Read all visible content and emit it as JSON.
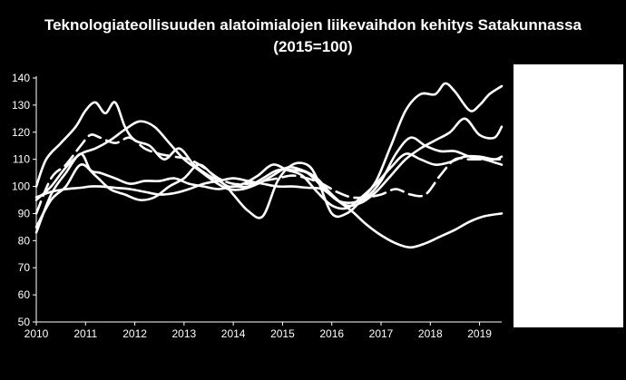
{
  "chart_data": {
    "type": "line",
    "title_line1": "Teknologiateollisuuden alatoimialojen liikevaihdon kehitys Satakunnassa",
    "title_line2": "(2015=100)",
    "ylim": [
      50,
      140
    ],
    "xlim": [
      2010,
      2019.45
    ],
    "yticks": [
      50,
      60,
      70,
      80,
      90,
      100,
      110,
      120,
      130,
      140
    ],
    "xticks": [
      2010,
      2011,
      2012,
      2013,
      2014,
      2015,
      2016,
      2017,
      2018,
      2019
    ],
    "grid": false,
    "legend": "right",
    "line_color": "#ffffff",
    "background": "#000000",
    "series": [
      {
        "style": "solid",
        "x": [
          2010,
          2010.3,
          2010.6,
          2010.9,
          2011.1,
          2011.3,
          2011.6,
          2011.9,
          2012.2,
          2012.5,
          2012.8,
          2013.1,
          2013.4,
          2013.7,
          2014.0,
          2014.3,
          2014.6,
          2014.9,
          2015.2,
          2015.5,
          2015.8,
          2016.1,
          2016.4,
          2016.7,
          2017.0,
          2017.3,
          2017.6,
          2017.9,
          2018.2,
          2018.5,
          2018.8,
          2019.1,
          2019.45
        ],
        "y": [
          96,
          98,
          99,
          99.5,
          100,
          100,
          99.5,
          99,
          98,
          97,
          97.5,
          99,
          101,
          102,
          103,
          102,
          101,
          100,
          100,
          99.5,
          99,
          95,
          91,
          86,
          82,
          79,
          77.5,
          79,
          81.5,
          84,
          87,
          89,
          90
        ]
      },
      {
        "style": "solid",
        "x": [
          2010,
          2010.3,
          2010.6,
          2010.9,
          2011.1,
          2011.3,
          2011.6,
          2011.9,
          2012.2,
          2012.5,
          2012.8,
          2013.1,
          2013.4,
          2013.7,
          2014.0,
          2014.3,
          2014.6,
          2014.9,
          2015.2,
          2015.5,
          2015.8,
          2016.1,
          2016.4,
          2016.7,
          2017.0,
          2017.3,
          2017.6,
          2017.9,
          2018.2,
          2018.5,
          2018.8,
          2019.1,
          2019.45
        ],
        "y": [
          83,
          97,
          105,
          112,
          106,
          105,
          103,
          101,
          102,
          102,
          103,
          101,
          100,
          99,
          100,
          100,
          103,
          106,
          106,
          105,
          100,
          95,
          94,
          96,
          102,
          112,
          118,
          115,
          113,
          113,
          111,
          110,
          108
        ]
      },
      {
        "style": "solid",
        "x": [
          2010,
          2010.3,
          2010.6,
          2010.9,
          2011.2,
          2011.5,
          2011.8,
          2012.1,
          2012.4,
          2012.7,
          2013.0,
          2013.3,
          2013.6,
          2013.9,
          2014.2,
          2014.5,
          2014.8,
          2015.1,
          2015.4,
          2015.7,
          2016.0,
          2016.3,
          2016.6,
          2016.9,
          2017.2,
          2017.5,
          2017.8,
          2018.1,
          2018.4,
          2018.7,
          2019.0,
          2019.3,
          2019.45
        ],
        "y": [
          85,
          95,
          100,
          108,
          104,
          99,
          97,
          95,
          96,
          100,
          103,
          108,
          104,
          100,
          101,
          104,
          108,
          106,
          104,
          98,
          93,
          92,
          96,
          101,
          107,
          112,
          110,
          108,
          109,
          111,
          111,
          110,
          111
        ]
      },
      {
        "style": "solid",
        "x": [
          2010,
          2010.2,
          2010.5,
          2010.8,
          2011.0,
          2011.2,
          2011.4,
          2011.6,
          2011.8,
          2012.0,
          2012.3,
          2012.6,
          2012.9,
          2013.2,
          2013.5,
          2013.8,
          2014.0,
          2014.3,
          2014.6,
          2014.9,
          2015.2,
          2015.5,
          2015.7,
          2016.0,
          2016.3,
          2016.6,
          2016.9,
          2017.2,
          2017.5,
          2017.8,
          2018.1,
          2018.3,
          2018.5,
          2018.8,
          2019.0,
          2019.2,
          2019.45
        ],
        "y": [
          100,
          110,
          116,
          122,
          128,
          131,
          127,
          131,
          122,
          117,
          115,
          110,
          114,
          108,
          104,
          101,
          97,
          91,
          89,
          102,
          108,
          108,
          103,
          90,
          90,
          95,
          102,
          115,
          128,
          134,
          134,
          138,
          135,
          128,
          130,
          134,
          137
        ]
      },
      {
        "style": "solid",
        "x": [
          2010,
          2010.3,
          2010.6,
          2010.9,
          2011.2,
          2011.5,
          2011.8,
          2012.1,
          2012.4,
          2012.7,
          2013.0,
          2013.3,
          2013.6,
          2013.9,
          2014.2,
          2014.5,
          2014.8,
          2015.1,
          2015.4,
          2015.7,
          2016.0,
          2016.3,
          2016.6,
          2016.9,
          2017.2,
          2017.5,
          2017.8,
          2018.1,
          2018.4,
          2018.7,
          2019.0,
          2019.3,
          2019.45
        ],
        "y": [
          95,
          100,
          107,
          112,
          114,
          117,
          121,
          124,
          122,
          116,
          110,
          106,
          102,
          99,
          99,
          101,
          104,
          107,
          106,
          103,
          97,
          93,
          94,
          98,
          104,
          110,
          114,
          117,
          120,
          125,
          119,
          118,
          122
        ]
      },
      {
        "style": "dashed",
        "x": [
          2010,
          2010.3,
          2010.6,
          2010.9,
          2011.1,
          2011.3,
          2011.6,
          2011.9,
          2012.2,
          2012.5,
          2012.8,
          2013.1,
          2013.4,
          2013.7,
          2014.0,
          2014.3,
          2014.6,
          2014.9,
          2015.2,
          2015.5,
          2015.8,
          2016.1,
          2016.4,
          2016.7,
          2017.0,
          2017.3,
          2017.6,
          2017.9,
          2018.2,
          2018.5,
          2018.8,
          2019.1,
          2019.45
        ],
        "y": [
          90,
          103,
          108,
          115,
          119,
          118,
          116,
          118,
          114,
          112,
          111,
          110,
          107,
          103,
          101,
          101,
          102,
          103,
          104,
          103,
          101,
          98,
          96,
          96,
          97,
          99,
          97,
          97,
          104,
          110,
          110,
          110,
          110
        ]
      }
    ]
  }
}
